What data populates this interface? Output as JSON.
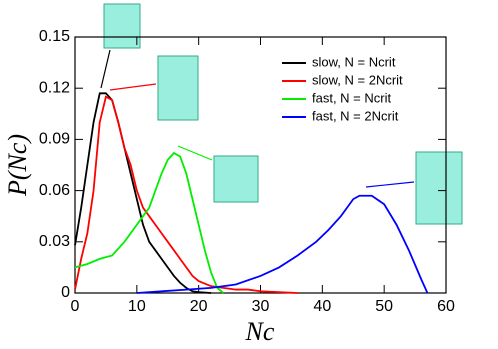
{
  "chart_data": {
    "type": "line",
    "x_label": "Nc",
    "y_label": "P(Nc)",
    "xlim": [
      0,
      60
    ],
    "xticks": [
      0,
      10,
      20,
      30,
      40,
      50,
      60
    ],
    "ylim": [
      0,
      0.15
    ],
    "yticks": [
      0,
      0.03,
      0.06,
      0.09,
      0.12,
      0.15
    ],
    "legend": "upper right",
    "series": [
      {
        "name": "slow, N = Ncrit",
        "color": "#000000",
        "x": [
          0,
          1,
          2,
          3,
          4,
          5,
          6,
          7,
          8,
          9,
          10,
          11,
          12,
          13,
          14,
          15,
          16,
          17,
          18,
          19,
          20,
          22
        ],
        "values": [
          0.028,
          0.05,
          0.075,
          0.1,
          0.117,
          0.117,
          0.113,
          0.1,
          0.085,
          0.07,
          0.055,
          0.04,
          0.03,
          0.025,
          0.02,
          0.015,
          0.01,
          0.006,
          0.003,
          0.001,
          0.0005,
          0
        ]
      },
      {
        "name": "slow, N = 2Ncrit",
        "color": "#ff0000",
        "x": [
          0,
          1,
          2,
          3,
          4,
          5,
          6,
          7,
          8,
          9,
          10,
          11,
          12,
          13,
          14,
          15,
          16,
          17,
          18,
          19,
          20,
          22,
          24,
          26,
          28,
          30,
          33,
          36
        ],
        "values": [
          0.002,
          0.02,
          0.035,
          0.06,
          0.1,
          0.115,
          0.113,
          0.1,
          0.085,
          0.075,
          0.06,
          0.05,
          0.045,
          0.04,
          0.035,
          0.03,
          0.025,
          0.02,
          0.015,
          0.01,
          0.007,
          0.004,
          0.003,
          0.002,
          0.002,
          0.001,
          0.0005,
          0
        ]
      },
      {
        "name": "fast, N = Ncrit",
        "color": "#00ee00",
        "x": [
          0,
          2,
          4,
          6,
          8,
          10,
          12,
          13,
          14,
          15,
          16,
          17,
          18,
          19,
          20,
          21,
          22,
          23,
          24
        ],
        "values": [
          0.015,
          0.017,
          0.02,
          0.022,
          0.03,
          0.04,
          0.05,
          0.06,
          0.07,
          0.078,
          0.082,
          0.08,
          0.07,
          0.055,
          0.04,
          0.025,
          0.012,
          0.003,
          0
        ]
      },
      {
        "name": "fast, N = 2Ncrit",
        "color": "#0000ff",
        "x": [
          10,
          14,
          18,
          22,
          26,
          30,
          33,
          36,
          39,
          41,
          43,
          45,
          46,
          48,
          50,
          52,
          54,
          56,
          57
        ],
        "values": [
          0,
          0.001,
          0.002,
          0.003,
          0.005,
          0.01,
          0.015,
          0.022,
          0.03,
          0.037,
          0.045,
          0.055,
          0.057,
          0.057,
          0.052,
          0.04,
          0.025,
          0.008,
          0
        ]
      }
    ]
  }
}
